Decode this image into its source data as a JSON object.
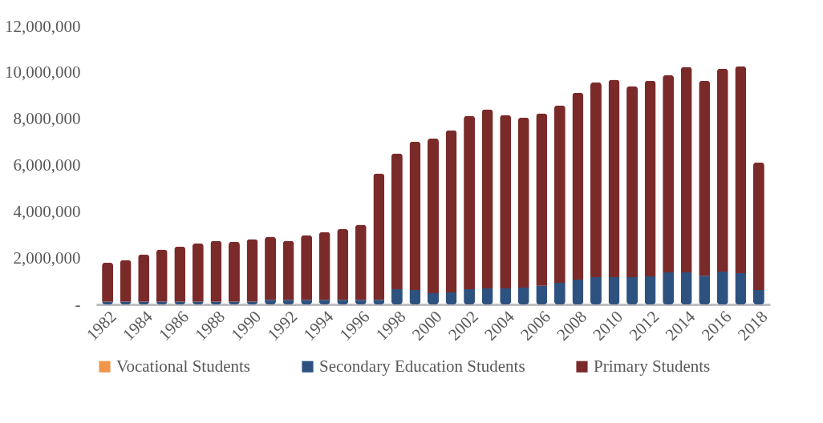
{
  "chart_data": {
    "type": "bar",
    "stacked": true,
    "categories": [
      "1982",
      null,
      "1984",
      null,
      "1986",
      null,
      "1988",
      null,
      "1990",
      null,
      "1992",
      null,
      "1994",
      null,
      "1996",
      null,
      "1998",
      null,
      "2000",
      null,
      "2002",
      null,
      "2004",
      null,
      "2006",
      null,
      "2008",
      null,
      "2010",
      null,
      "2012",
      null,
      "2014",
      null,
      "2016",
      null,
      "2018"
    ],
    "series": [
      {
        "name": "Vocational Students",
        "color": "#f0964a",
        "values": [
          null,
          null,
          null,
          null,
          null,
          null,
          null,
          null,
          null,
          null,
          null,
          null,
          null,
          null,
          null,
          null,
          null,
          null,
          null,
          null,
          null,
          null,
          null,
          null,
          null,
          null,
          null,
          null,
          null,
          null,
          null,
          null,
          null,
          null,
          null,
          null,
          null
        ]
      },
      {
        "name": "Secondary Education Students",
        "color": "#2e527f",
        "values": [
          120000,
          120000,
          120000,
          120000,
          120000,
          120000,
          120000,
          120000,
          120000,
          200000,
          200000,
          200000,
          200000,
          200000,
          200000,
          200000,
          660000,
          620000,
          480000,
          520000,
          660000,
          690000,
          690000,
          730000,
          800000,
          930000,
          1070000,
          1180000,
          1180000,
          1180000,
          1210000,
          1380000,
          1380000,
          1240000,
          1420000,
          1350000,
          620000
        ]
      },
      {
        "name": "Primary Students",
        "color": "#7b2a2a",
        "values": [
          1690000,
          1800000,
          2040000,
          2250000,
          2380000,
          2520000,
          2630000,
          2590000,
          2700000,
          2720000,
          2550000,
          2790000,
          2930000,
          3060000,
          3240000,
          5450000,
          5860000,
          6410000,
          6690000,
          7000000,
          7480000,
          7730000,
          7490000,
          7340000,
          7450000,
          7660000,
          8070000,
          8410000,
          8520000,
          8240000,
          8450000,
          8520000,
          8870000,
          8420000,
          8760000,
          8930000,
          5510000
        ]
      }
    ],
    "ylim": [
      0,
      12000000
    ],
    "yticks": [
      {
        "value": 0,
        "label": "-"
      },
      {
        "value": 2000000,
        "label": "2,000,000"
      },
      {
        "value": 4000000,
        "label": "4,000,000"
      },
      {
        "value": 6000000,
        "label": "6,000,000"
      },
      {
        "value": 8000000,
        "label": "8,000,000"
      },
      {
        "value": 10000000,
        "label": "10,000,000"
      },
      {
        "value": 12000000,
        "label": "12,000,000"
      }
    ],
    "grid": false,
    "legend": "bottom"
  }
}
